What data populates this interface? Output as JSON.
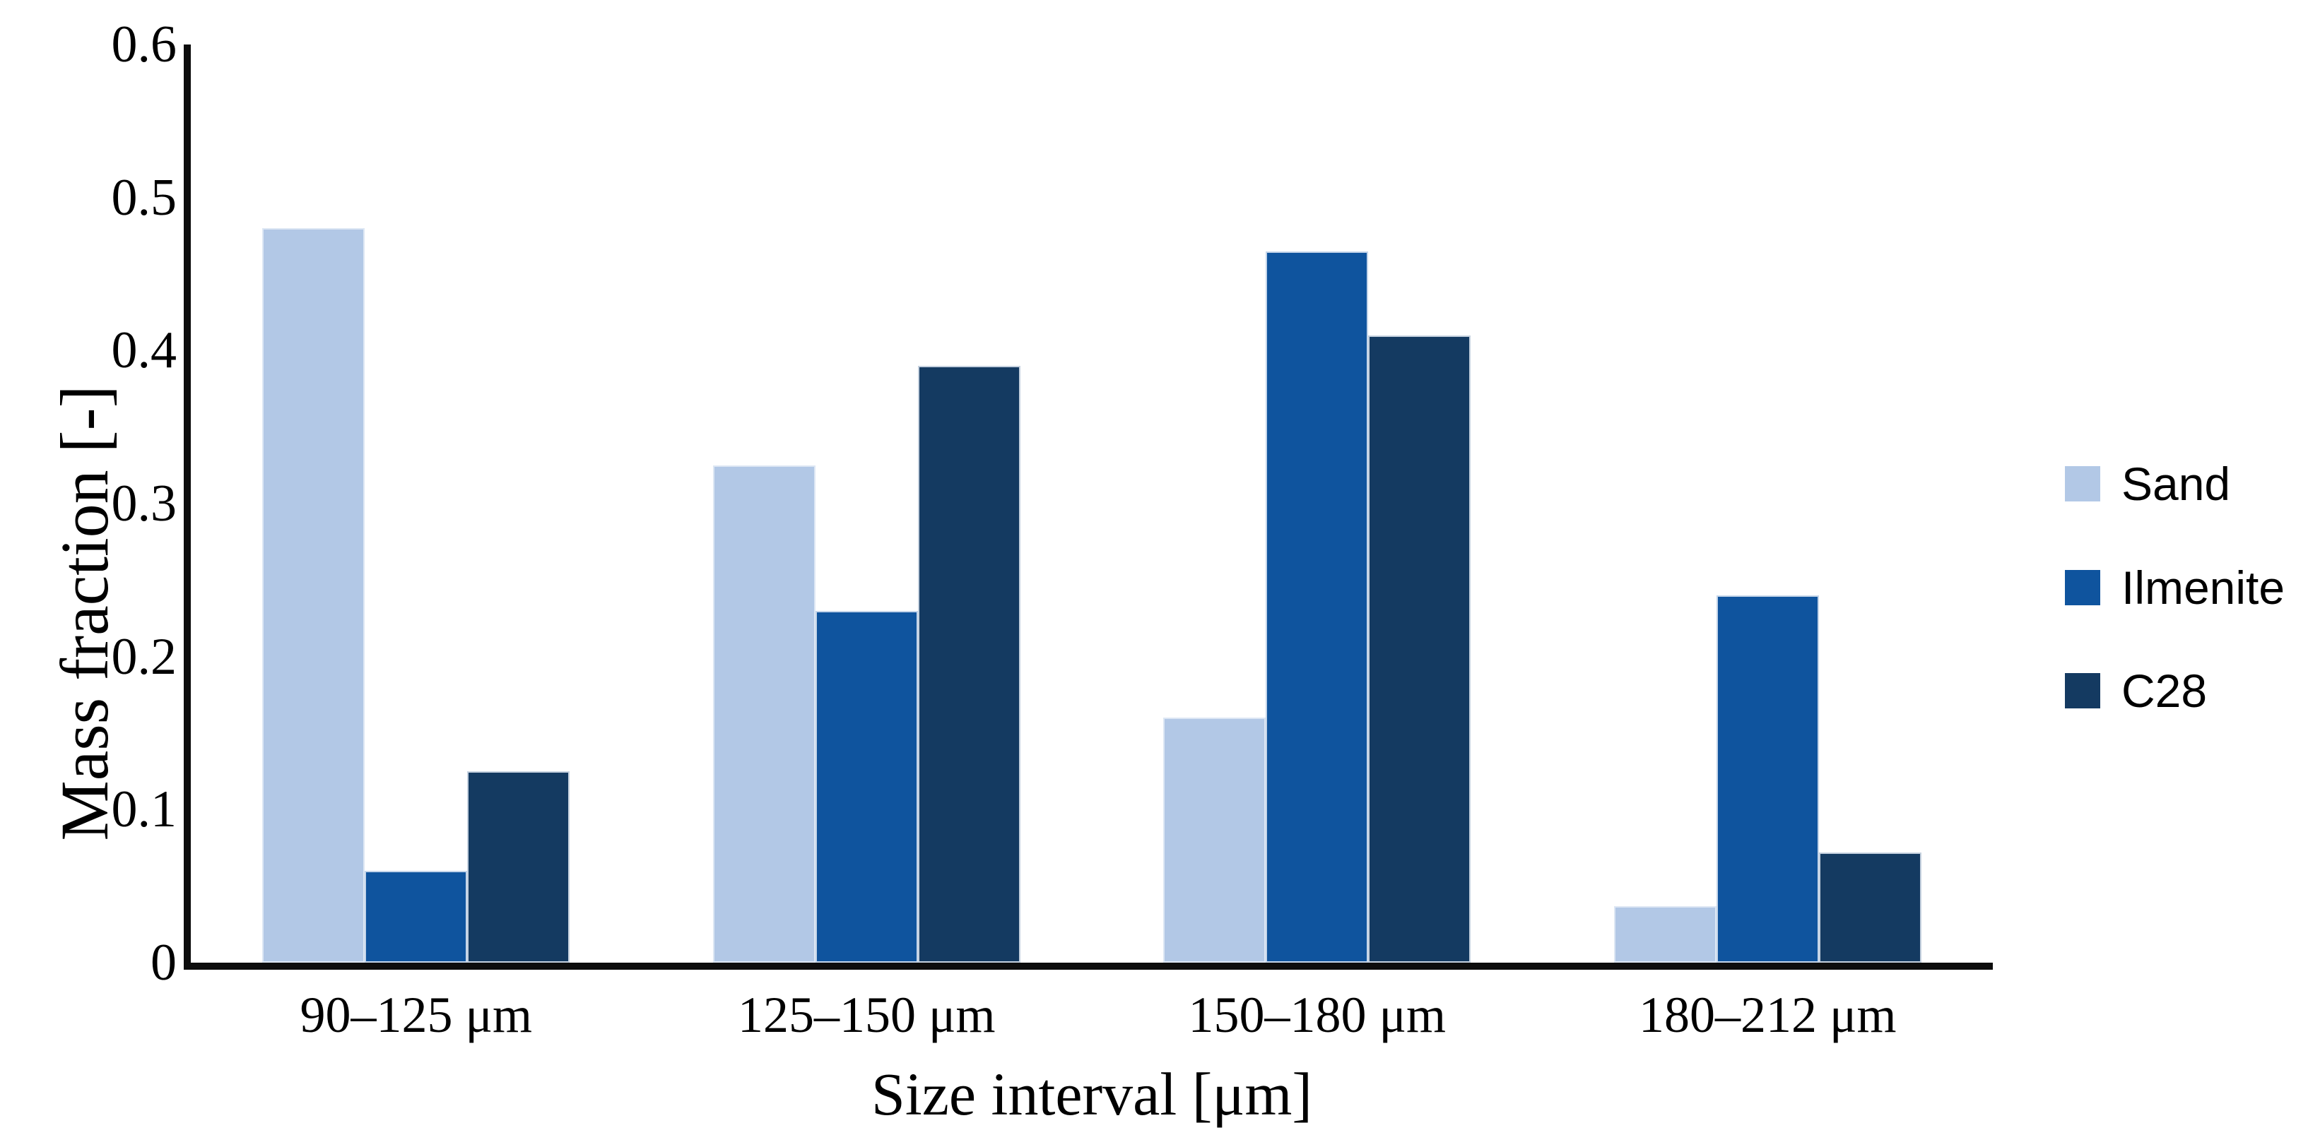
{
  "chart_data": {
    "type": "bar",
    "title": "",
    "xlabel": "Size interval [μm]",
    "ylabel": "Mass fraction [-]",
    "categories": [
      "90–125 μm",
      "125–150 μm",
      "150–180 μm",
      "180–212 μm"
    ],
    "series": [
      {
        "name": "Sand",
        "color": "#b2c8e6",
        "values": [
          0.48,
          0.325,
          0.16,
          0.037
        ]
      },
      {
        "name": "Ilmenite",
        "color": "#0f549e",
        "values": [
          0.06,
          0.23,
          0.465,
          0.24
        ]
      },
      {
        "name": "C28",
        "color": "#143a61",
        "values": [
          0.125,
          0.39,
          0.41,
          0.072
        ]
      }
    ],
    "ylim": [
      0,
      0.6
    ],
    "yticks": [
      0,
      0.1,
      0.2,
      0.3,
      0.4,
      0.5,
      0.6
    ],
    "ytick_labels": [
      "0",
      "0.1",
      "0.2",
      "0.3",
      "0.4",
      "0.5",
      "0.6"
    ],
    "grid": false,
    "legend_position": "right",
    "axis_color": "#0d0d0d",
    "text_color": "#000000"
  }
}
